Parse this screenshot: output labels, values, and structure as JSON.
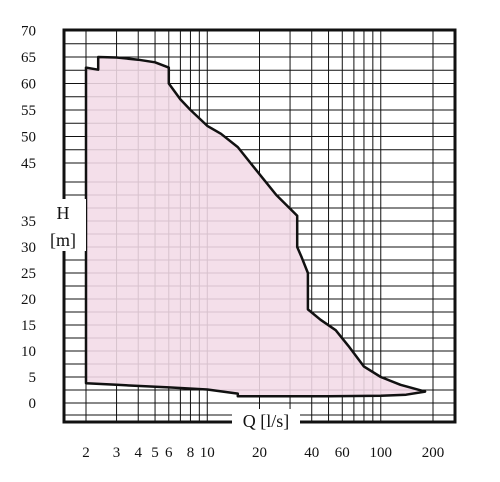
{
  "chart_data": {
    "type": "area",
    "title": "",
    "xlabel": "Q [l/s]",
    "ylabel_symbol": "H",
    "ylabel_unit": "[m]",
    "x_scale": "log",
    "xlim": [
      2,
      200
    ],
    "ylim": [
      0,
      70
    ],
    "x_tick_labels": [
      "2",
      "3",
      "4",
      "5",
      "6",
      "8",
      "10",
      "20",
      "40",
      "60",
      "100",
      "200"
    ],
    "y_tick_labels_upper": [
      "45",
      "50",
      "55",
      "60",
      "65",
      "70"
    ],
    "y_tick_labels_lower": [
      "0",
      "5",
      "10",
      "15",
      "20",
      "25",
      "30",
      "35"
    ],
    "y_upper_break": 45,
    "grid": true,
    "fill_color": "#f3dbe7",
    "line_color": "#111111",
    "series": [
      {
        "name": "",
        "boundary": [
          [
            2.0,
            3.8
          ],
          [
            2.0,
            63.0
          ],
          [
            2.35,
            62.6
          ],
          [
            2.35,
            65.0
          ],
          [
            3.0,
            64.9
          ],
          [
            4.0,
            64.5
          ],
          [
            5.0,
            64.0
          ],
          [
            6.0,
            63.0
          ],
          [
            6.0,
            60.0
          ],
          [
            7.0,
            57.0
          ],
          [
            8.0,
            55.0
          ],
          [
            10.0,
            52.0
          ],
          [
            12.0,
            50.5
          ],
          [
            15.0,
            48.0
          ],
          [
            20.0,
            44.0
          ],
          [
            25.0,
            40.0
          ],
          [
            33.0,
            36.0
          ],
          [
            33.0,
            30.0
          ],
          [
            35.0,
            28.0
          ],
          [
            38.0,
            25.0
          ],
          [
            38.0,
            18.0
          ],
          [
            45.0,
            16.0
          ],
          [
            55.0,
            14.0
          ],
          [
            65.0,
            11.0
          ],
          [
            80.0,
            7.0
          ],
          [
            100.0,
            5.0
          ],
          [
            130.0,
            3.5
          ],
          [
            180.0,
            2.2
          ],
          [
            140.0,
            1.6
          ],
          [
            100.0,
            1.4
          ],
          [
            50.0,
            1.3
          ],
          [
            20.0,
            1.3
          ],
          [
            15.0,
            1.3
          ],
          [
            15.0,
            1.8
          ],
          [
            10.0,
            2.6
          ],
          [
            6.0,
            3.0
          ],
          [
            3.0,
            3.5
          ],
          [
            2.0,
            3.8
          ]
        ]
      }
    ]
  }
}
